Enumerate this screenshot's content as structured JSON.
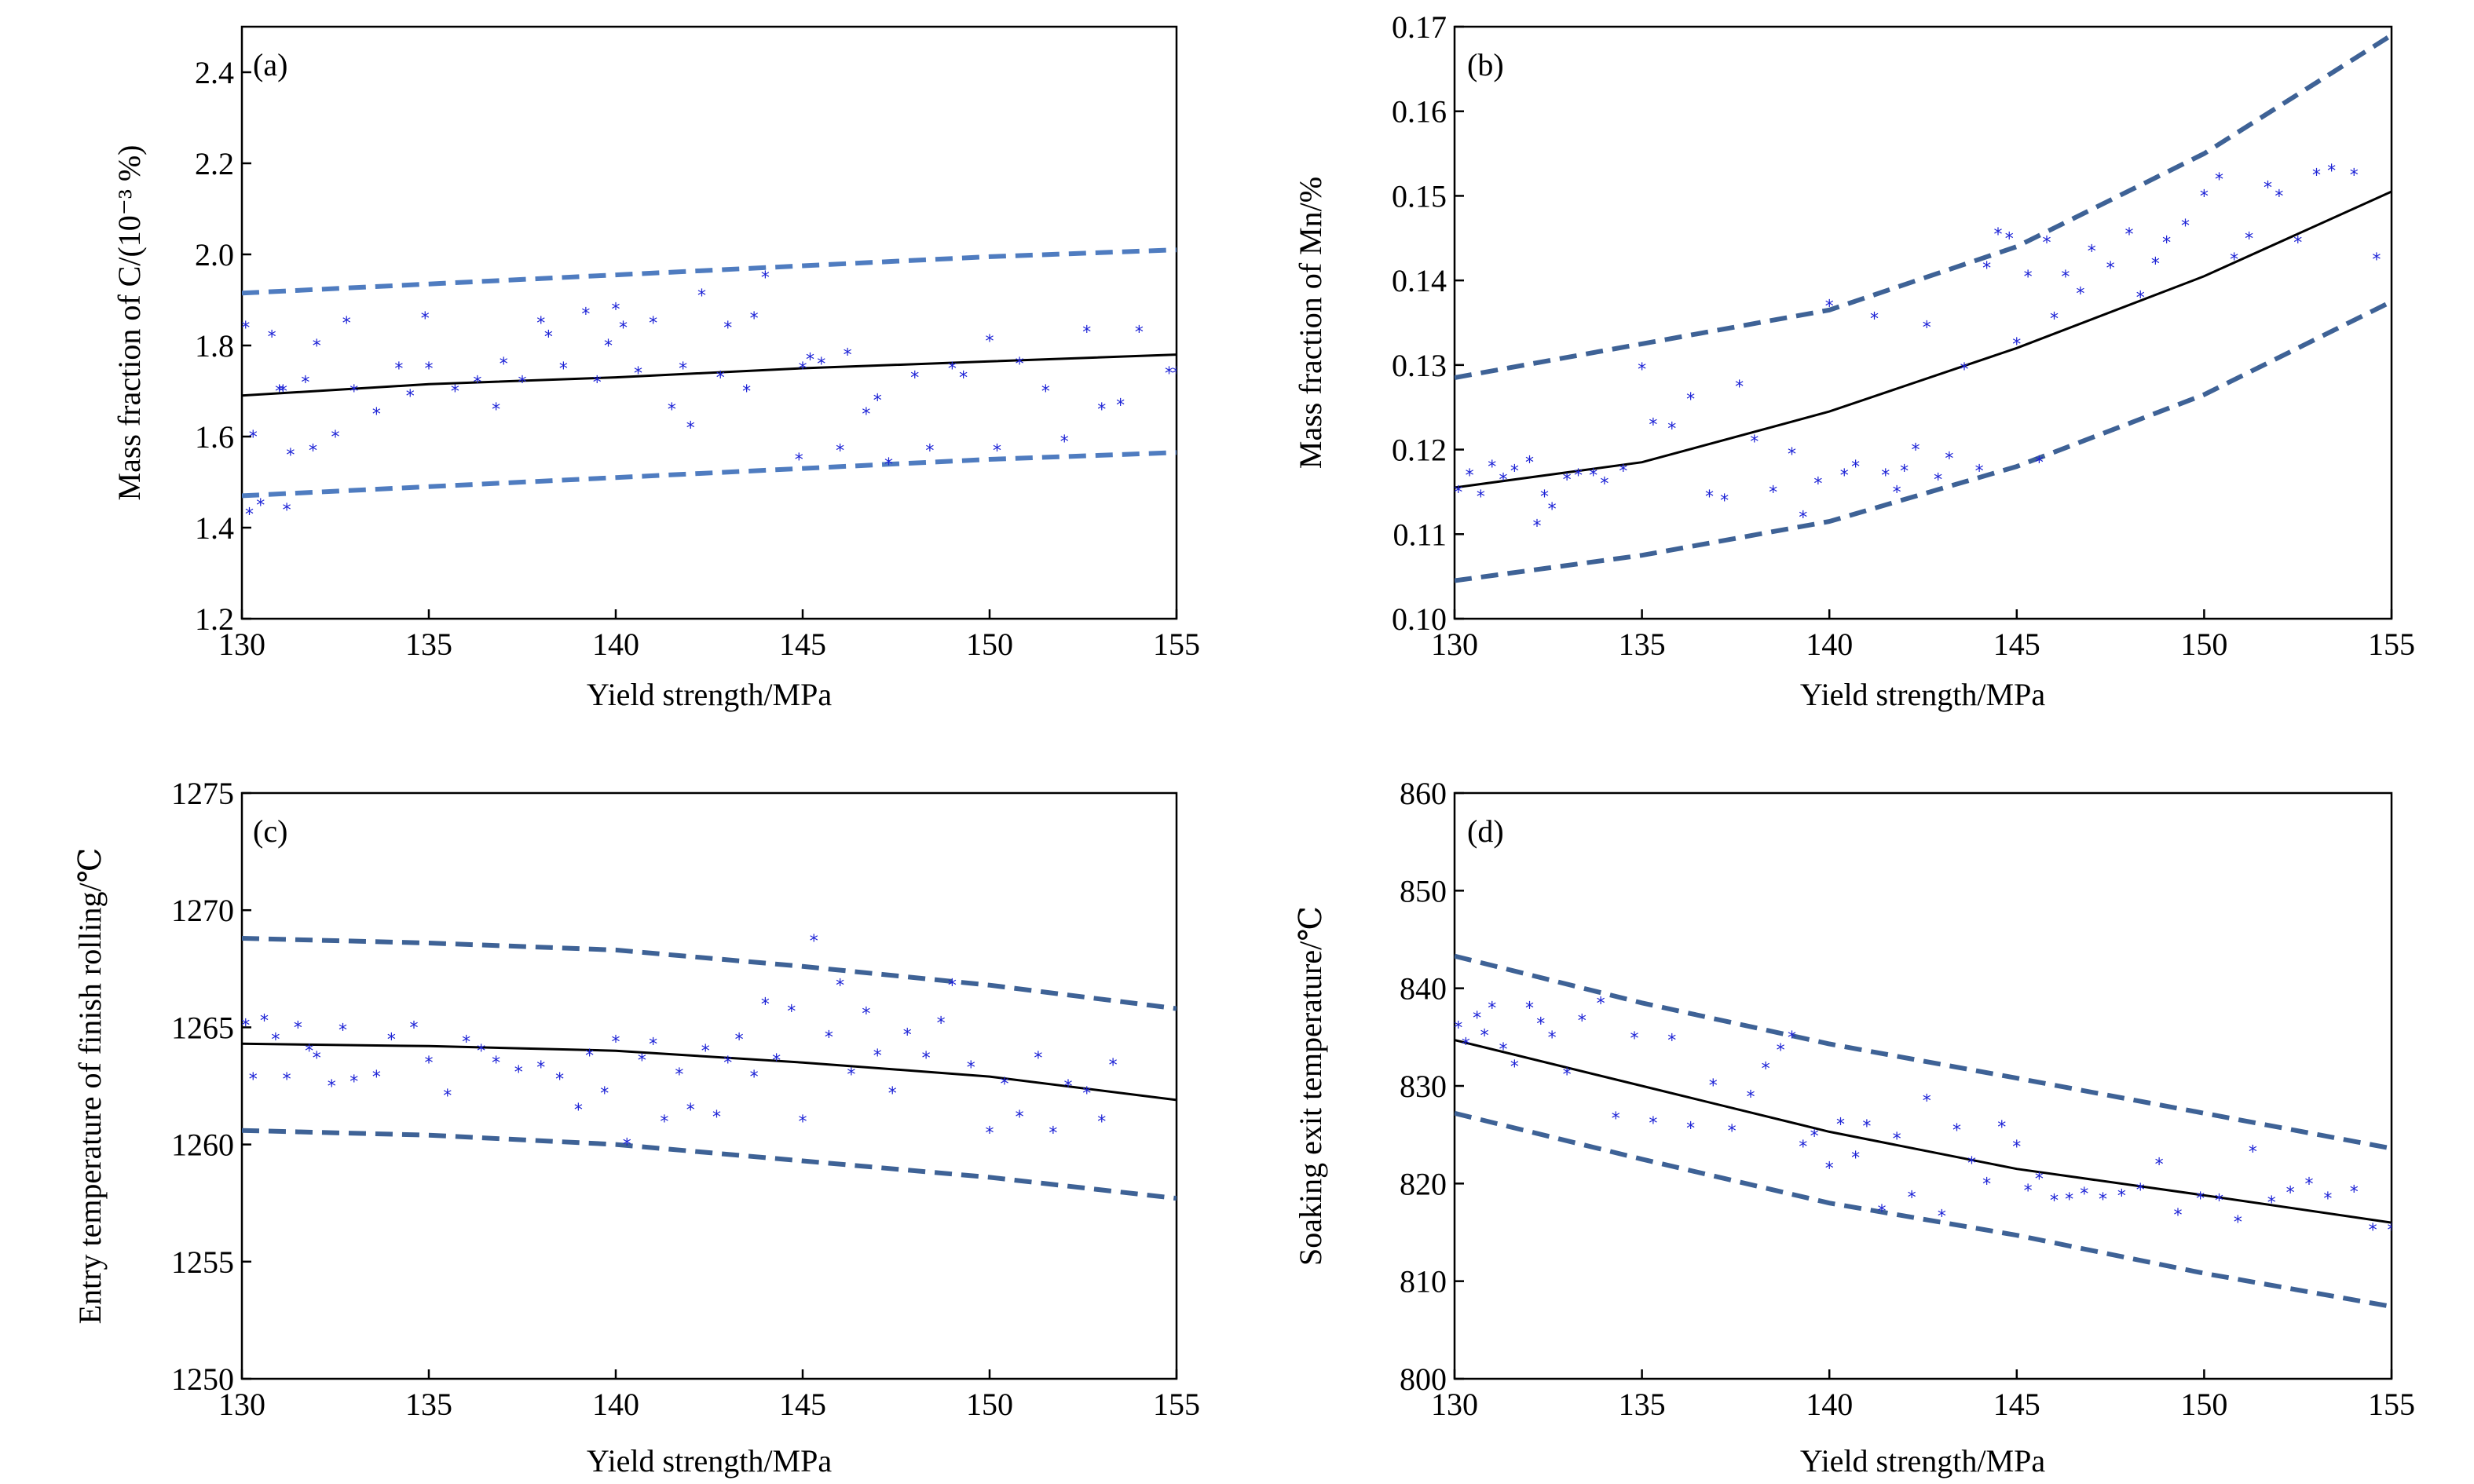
{
  "colors": {
    "bound": "#4f7cc0",
    "bound_dark": "#3e6296",
    "marker": "#1c22d6",
    "fit": "#000000"
  },
  "chart_data": [
    {
      "type": "scatter",
      "panel": "(a)",
      "xlabel": "Yield strength/MPa",
      "ylabel": "Mass fraction of C/(10⁻³ %)",
      "xlim": [
        130,
        155
      ],
      "ylim": [
        1.2,
        2.5
      ],
      "xticks": [
        130,
        135,
        140,
        145,
        150,
        155
      ],
      "yticks": [
        1.2,
        1.4,
        1.6,
        1.8,
        2.0,
        2.2,
        2.4
      ],
      "ytick_labels": [
        "1.2",
        "1.4",
        "1.6",
        "1.8",
        "2.0",
        "2.2",
        "2.4"
      ],
      "fit": {
        "x": [
          130,
          135,
          140,
          145,
          150,
          155
        ],
        "y": [
          1.69,
          1.715,
          1.73,
          1.75,
          1.765,
          1.78
        ]
      },
      "upper": {
        "x": [
          130,
          135,
          140,
          145,
          150,
          155
        ],
        "y": [
          1.915,
          1.935,
          1.955,
          1.975,
          1.995,
          2.01
        ]
      },
      "lower": {
        "x": [
          130,
          135,
          140,
          145,
          150,
          155
        ],
        "y": [
          1.47,
          1.49,
          1.51,
          1.53,
          1.55,
          1.565
        ]
      },
      "points": {
        "x": [
          130.1,
          130.2,
          130.3,
          130.5,
          130.8,
          131.0,
          131.2,
          131.3,
          131.1,
          131.7,
          131.9,
          132.0,
          132.5,
          132.8,
          133.0,
          133.6,
          134.2,
          134.5,
          134.9,
          135.0,
          135.7,
          136.3,
          136.8,
          137.0,
          137.5,
          138.0,
          138.2,
          138.6,
          139.2,
          139.5,
          139.8,
          140.0,
          140.2,
          140.6,
          141.0,
          141.5,
          141.8,
          142.0,
          142.3,
          142.8,
          143.0,
          143.5,
          143.7,
          144.0,
          144.9,
          145.0,
          145.2,
          145.5,
          146.0,
          146.2,
          146.7,
          147.0,
          147.3,
          148.0,
          148.4,
          149.0,
          149.3,
          150.0,
          150.2,
          150.8,
          151.5,
          152.0,
          152.6,
          153.0,
          153.5,
          154.0,
          154.8,
          155.0
        ],
        "y": [
          1.84,
          1.43,
          1.6,
          1.45,
          1.82,
          1.7,
          1.44,
          1.56,
          1.7,
          1.72,
          1.57,
          1.8,
          1.6,
          1.85,
          1.7,
          1.65,
          1.75,
          1.69,
          1.86,
          1.75,
          1.7,
          1.72,
          1.66,
          1.76,
          1.72,
          1.85,
          1.82,
          1.75,
          1.87,
          1.72,
          1.8,
          1.88,
          1.84,
          1.74,
          1.85,
          1.66,
          1.75,
          1.62,
          1.91,
          1.73,
          1.84,
          1.7,
          1.86,
          1.95,
          1.55,
          1.75,
          1.77,
          1.76,
          1.57,
          1.78,
          1.65,
          1.68,
          1.54,
          1.73,
          1.57,
          1.75,
          1.73,
          1.81,
          1.57,
          1.76,
          1.7,
          1.59,
          1.83,
          1.66,
          1.67,
          1.83,
          1.74,
          1.74
        ]
      }
    },
    {
      "type": "scatter",
      "panel": "(b)",
      "xlabel": "Yield strength/MPa",
      "ylabel": "Mass fraction of Mn/%",
      "xlim": [
        130,
        155
      ],
      "ylim": [
        0.1,
        0.17
      ],
      "xticks": [
        130,
        135,
        140,
        145,
        150,
        155
      ],
      "yticks": [
        0.1,
        0.11,
        0.12,
        0.13,
        0.14,
        0.15,
        0.16,
        0.17
      ],
      "ytick_labels": [
        "0.10",
        "0.11",
        "0.12",
        "0.13",
        "0.14",
        "0.15",
        "0.16",
        "0.17"
      ],
      "fit": {
        "x": [
          130,
          135,
          140,
          145,
          150,
          155
        ],
        "y": [
          0.1155,
          0.1185,
          0.1245,
          0.132,
          0.1405,
          0.1505
        ]
      },
      "upper": {
        "x": [
          130,
          135,
          140,
          145,
          150,
          155
        ],
        "y": [
          0.1285,
          0.1325,
          0.1365,
          0.144,
          0.155,
          0.169
        ]
      },
      "lower": {
        "x": [
          130,
          135,
          140,
          145,
          150,
          155
        ],
        "y": [
          0.1045,
          0.1075,
          0.1115,
          0.118,
          0.1265,
          0.1375
        ]
      },
      "points": {
        "x": [
          130.1,
          130.4,
          130.7,
          131.0,
          131.3,
          131.6,
          132.0,
          132.2,
          132.4,
          132.6,
          133.0,
          133.3,
          133.7,
          134.0,
          134.5,
          135.0,
          135.3,
          135.8,
          136.3,
          136.8,
          137.2,
          137.6,
          138.0,
          138.5,
          139.0,
          139.3,
          139.7,
          140.0,
          140.4,
          140.7,
          141.2,
          141.5,
          141.8,
          142.0,
          142.3,
          142.6,
          142.9,
          143.2,
          143.6,
          144.0,
          144.2,
          144.5,
          144.8,
          145.0,
          145.3,
          145.6,
          145.8,
          146.0,
          146.3,
          146.7,
          147.0,
          147.5,
          148.0,
          148.3,
          148.7,
          149.0,
          149.5,
          150.0,
          150.4,
          150.8,
          151.2,
          151.7,
          152.0,
          152.5,
          153.0,
          153.4,
          154.0,
          154.6
        ],
        "y": [
          0.115,
          0.117,
          0.1145,
          0.118,
          0.1165,
          0.1175,
          0.1185,
          0.111,
          0.1145,
          0.113,
          0.1165,
          0.117,
          0.117,
          0.116,
          0.1175,
          0.1295,
          0.123,
          0.1225,
          0.126,
          0.1145,
          0.114,
          0.1275,
          0.121,
          0.115,
          0.1195,
          0.112,
          0.116,
          0.137,
          0.117,
          0.118,
          0.1355,
          0.117,
          0.115,
          0.1175,
          0.12,
          0.1345,
          0.1165,
          0.119,
          0.1295,
          0.1175,
          0.1415,
          0.1455,
          0.145,
          0.1325,
          0.1405,
          0.1185,
          0.1445,
          0.1355,
          0.1405,
          0.1385,
          0.1435,
          0.1415,
          0.1455,
          0.138,
          0.142,
          0.1445,
          0.1465,
          0.15,
          0.152,
          0.1425,
          0.145,
          0.151,
          0.15,
          0.1445,
          0.1525,
          0.153,
          0.1525,
          0.1425
        ]
      }
    },
    {
      "type": "scatter",
      "panel": "(c)",
      "xlabel": "Yield strength/MPa",
      "ylabel": "Entry temperature of finish rolling/℃",
      "xlim": [
        130,
        155
      ],
      "ylim": [
        1250,
        1275
      ],
      "xticks": [
        130,
        135,
        140,
        145,
        150,
        155
      ],
      "yticks": [
        1250,
        1255,
        1260,
        1265,
        1270,
        1275
      ],
      "ytick_labels": [
        "1250",
        "1255",
        "1260",
        "1265",
        "1270",
        "1275"
      ],
      "fit": {
        "x": [
          130,
          135,
          140,
          145,
          150,
          155
        ],
        "y": [
          1264.3,
          1264.2,
          1264.0,
          1263.5,
          1262.9,
          1261.9
        ]
      },
      "upper": {
        "x": [
          130,
          135,
          140,
          145,
          150,
          155
        ],
        "y": [
          1268.8,
          1268.6,
          1268.3,
          1267.6,
          1266.8,
          1265.8
        ]
      },
      "lower": {
        "x": [
          130,
          135,
          140,
          145,
          150,
          155
        ],
        "y": [
          1260.6,
          1260.4,
          1260.0,
          1259.3,
          1258.6,
          1257.7
        ]
      },
      "points": {
        "x": [
          130.1,
          130.3,
          130.6,
          130.9,
          131.2,
          131.5,
          131.8,
          132.0,
          132.4,
          132.7,
          133.0,
          133.6,
          134.0,
          134.6,
          135.0,
          135.5,
          136.0,
          136.4,
          136.8,
          137.4,
          138.0,
          138.5,
          139.0,
          139.3,
          139.7,
          140.0,
          140.3,
          140.7,
          141.0,
          141.3,
          141.7,
          142.0,
          142.4,
          142.7,
          143.0,
          143.3,
          143.7,
          144.0,
          144.3,
          144.7,
          145.0,
          145.3,
          145.7,
          146.0,
          146.3,
          146.7,
          147.0,
          147.4,
          147.8,
          148.3,
          148.7,
          149.0,
          149.5,
          150.0,
          150.4,
          150.8,
          151.3,
          151.7,
          152.1,
          152.6,
          153.0,
          153.3
        ],
        "y": [
          1265.1,
          1262.8,
          1265.3,
          1264.5,
          1262.8,
          1265.0,
          1264.0,
          1263.7,
          1262.5,
          1264.9,
          1262.7,
          1262.9,
          1264.5,
          1265.0,
          1263.5,
          1262.1,
          1264.4,
          1264.0,
          1263.5,
          1263.1,
          1263.3,
          1262.8,
          1261.5,
          1263.8,
          1262.2,
          1264.4,
          1260.0,
          1263.6,
          1264.3,
          1261.0,
          1263.0,
          1261.5,
          1264.0,
          1261.2,
          1263.5,
          1264.5,
          1262.9,
          1266.0,
          1263.6,
          1265.7,
          1261.0,
          1268.7,
          1264.6,
          1266.8,
          1263.0,
          1265.6,
          1263.8,
          1262.2,
          1264.7,
          1263.7,
          1265.2,
          1266.8,
          1263.3,
          1260.5,
          1262.6,
          1261.2,
          1263.7,
          1260.5,
          1262.5,
          1262.2,
          1261.0,
          1263.4
        ]
      }
    },
    {
      "type": "scatter",
      "panel": "(d)",
      "xlabel": "Yield strength/MPa",
      "ylabel": "Soaking exit temperature/℃",
      "xlim": [
        130,
        155
      ],
      "ylim": [
        800,
        860
      ],
      "xticks": [
        130,
        135,
        140,
        145,
        150,
        155
      ],
      "yticks": [
        800,
        810,
        820,
        830,
        840,
        850,
        860
      ],
      "ytick_labels": [
        "800",
        "810",
        "820",
        "830",
        "840",
        "850",
        "860"
      ],
      "fit": {
        "x": [
          130,
          135,
          140,
          145,
          150,
          155
        ],
        "y": [
          834.7,
          830.0,
          825.3,
          821.5,
          818.8,
          816.0
        ]
      },
      "upper": {
        "x": [
          130,
          135,
          140,
          145,
          150,
          155
        ],
        "y": [
          843.3,
          838.5,
          834.3,
          830.8,
          827.2,
          823.6
        ]
      },
      "lower": {
        "x": [
          130,
          135,
          140,
          145,
          150,
          155
        ],
        "y": [
          827.2,
          822.5,
          818.0,
          814.7,
          810.8,
          807.4
        ]
      },
      "points": {
        "x": [
          130.1,
          130.3,
          130.6,
          130.8,
          131.0,
          131.3,
          131.6,
          132.0,
          132.3,
          132.6,
          133.0,
          133.4,
          133.9,
          134.3,
          134.8,
          135.3,
          135.8,
          136.3,
          136.9,
          137.4,
          137.9,
          138.3,
          138.7,
          139.0,
          139.3,
          139.6,
          140.0,
          140.3,
          140.7,
          141.0,
          141.4,
          141.8,
          142.2,
          142.6,
          143.0,
          143.4,
          143.8,
          144.2,
          144.6,
          145.0,
          145.3,
          145.6,
          146.0,
          146.4,
          146.8,
          147.3,
          147.8,
          148.3,
          148.8,
          149.3,
          149.9,
          150.4,
          150.9,
          151.3,
          151.8,
          152.3,
          152.8,
          153.3,
          154.0,
          154.5,
          155.0
        ],
        "y": [
          836.0,
          834.3,
          837.0,
          835.2,
          838.0,
          833.8,
          832.0,
          838.0,
          836.4,
          835.0,
          831.2,
          836.7,
          838.5,
          826.7,
          834.9,
          826.2,
          834.7,
          825.7,
          830.1,
          825.4,
          828.9,
          831.8,
          833.7,
          835.0,
          823.8,
          824.9,
          821.6,
          826.1,
          822.7,
          825.9,
          817.2,
          824.6,
          818.6,
          828.5,
          816.7,
          825.5,
          822.1,
          820.0,
          825.8,
          823.8,
          819.3,
          820.5,
          818.3,
          818.4,
          819.0,
          818.4,
          818.8,
          819.4,
          822.0,
          816.8,
          818.5,
          818.3,
          816.1,
          823.3,
          818.1,
          819.1,
          820.0,
          818.5,
          819.2,
          815.3,
          815.3
        ]
      }
    }
  ]
}
